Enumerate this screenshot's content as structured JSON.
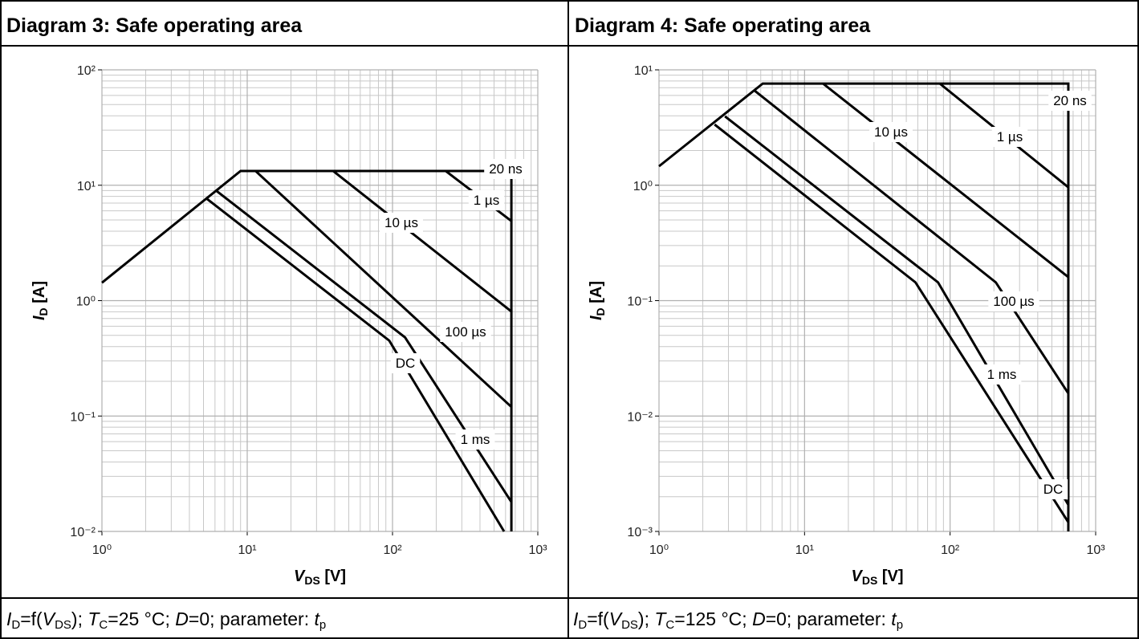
{
  "chart_data": [
    {
      "type": "line",
      "title": "Diagram 3: Safe operating area",
      "xlabel": [
        "V",
        "DS",
        " [V]"
      ],
      "ylabel": [
        "I",
        "D",
        " [A]"
      ],
      "log_x": true,
      "log_y": true,
      "grid": true,
      "minor_grid": true,
      "xlim": [
        1,
        1000
      ],
      "ylim": [
        0.01,
        100
      ],
      "xticks": [
        {
          "value": 1,
          "label": "10⁰"
        },
        {
          "value": 10,
          "label": "10¹"
        },
        {
          "value": 100,
          "label": "10²"
        },
        {
          "value": 1000,
          "label": "10³"
        }
      ],
      "yticks": [
        {
          "value": 0.01,
          "label": "10⁻²"
        },
        {
          "value": 0.1,
          "label": "10⁻¹"
        },
        {
          "value": 1,
          "label": "10⁰"
        },
        {
          "value": 10,
          "label": "10¹"
        },
        {
          "value": 100,
          "label": "10²"
        }
      ],
      "series": [
        {
          "name": "20 ns",
          "color": "#000000",
          "x": [
            1,
            9,
            658,
            658
          ],
          "values": [
            1.43,
            13.3,
            13.3,
            0.01
          ]
        },
        {
          "name": "1 µs",
          "color": "#000000",
          "x": [
            232,
            658
          ],
          "values": [
            13.3,
            4.9
          ]
        },
        {
          "name": "10 µs",
          "color": "#000000",
          "x": [
            39,
            658
          ],
          "values": [
            13.3,
            0.805
          ]
        },
        {
          "name": "100 µs",
          "color": "#000000",
          "x": [
            11.4,
            658
          ],
          "values": [
            13.3,
            0.12
          ]
        },
        {
          "name": "1 ms",
          "color": "#000000",
          "x": [
            6.17,
            122,
            658
          ],
          "values": [
            8.9,
            0.48,
            0.018
          ]
        },
        {
          "name": "DC",
          "color": "#000000",
          "x": [
            5.3,
            95,
            586
          ],
          "values": [
            7.6,
            0.45,
            0.01
          ]
        }
      ],
      "caption": [
        {
          "t": "I",
          "s": "i"
        },
        {
          "t": "D",
          "s": "sub"
        },
        {
          "t": "=f("
        },
        {
          "t": "V",
          "s": "i"
        },
        {
          "t": "DS",
          "s": "sub"
        },
        {
          "t": "); "
        },
        {
          "t": "T",
          "s": "i"
        },
        {
          "t": "C",
          "s": "sub"
        },
        {
          "t": "=25 °C; "
        },
        {
          "t": "D",
          "s": "i"
        },
        {
          "t": "=0; parameter: "
        },
        {
          "t": "t",
          "s": "i"
        },
        {
          "t": "p",
          "s": "sub"
        }
      ]
    },
    {
      "type": "line",
      "title": "Diagram 4: Safe operating area",
      "xlabel": [
        "V",
        "DS",
        " [V]"
      ],
      "ylabel": [
        "I",
        "D",
        " [A]"
      ],
      "log_x": true,
      "log_y": true,
      "grid": true,
      "minor_grid": true,
      "xlim": [
        1,
        1000
      ],
      "ylim": [
        0.001,
        10
      ],
      "xticks": [
        {
          "value": 1,
          "label": "10⁰"
        },
        {
          "value": 10,
          "label": "10¹"
        },
        {
          "value": 100,
          "label": "10²"
        },
        {
          "value": 1000,
          "label": "10³"
        }
      ],
      "yticks": [
        {
          "value": 0.001,
          "label": "10⁻³"
        },
        {
          "value": 0.01,
          "label": "10⁻²"
        },
        {
          "value": 0.1,
          "label": "10⁻¹"
        },
        {
          "value": 1,
          "label": "10⁰"
        },
        {
          "value": 10,
          "label": "10¹"
        }
      ],
      "series": [
        {
          "name": "20 ns",
          "color": "#000000",
          "x": [
            1,
            5.16,
            649,
            649
          ],
          "values": [
            1.46,
            7.6,
            7.6,
            0.001
          ]
        },
        {
          "name": "1 µs",
          "color": "#000000",
          "x": [
            85,
            649
          ],
          "values": [
            7.6,
            0.96
          ]
        },
        {
          "name": "10 µs",
          "color": "#000000",
          "x": [
            13.4,
            649
          ],
          "values": [
            7.6,
            0.16
          ]
        },
        {
          "name": "100 µs",
          "color": "#000000",
          "x": [
            4.54,
            206,
            649
          ],
          "values": [
            6.6,
            0.144,
            0.0157
          ]
        },
        {
          "name": "1 ms",
          "color": "#000000",
          "x": [
            2.84,
            82.6,
            649
          ],
          "values": [
            3.95,
            0.144,
            0.0017
          ]
        },
        {
          "name": "DC",
          "color": "#000000",
          "x": [
            2.41,
            57.8,
            649
          ],
          "values": [
            3.36,
            0.144,
            0.0012
          ]
        }
      ],
      "caption": [
        {
          "t": "I",
          "s": "i"
        },
        {
          "t": "D",
          "s": "sub"
        },
        {
          "t": "=f("
        },
        {
          "t": "V",
          "s": "i"
        },
        {
          "t": "DS",
          "s": "sub"
        },
        {
          "t": "); "
        },
        {
          "t": "T",
          "s": "i"
        },
        {
          "t": "C",
          "s": "sub"
        },
        {
          "t": "=125 °C; "
        },
        {
          "t": "D",
          "s": "i"
        },
        {
          "t": "=0; parameter: "
        },
        {
          "t": "t",
          "s": "i"
        },
        {
          "t": "p",
          "s": "sub"
        }
      ]
    }
  ]
}
